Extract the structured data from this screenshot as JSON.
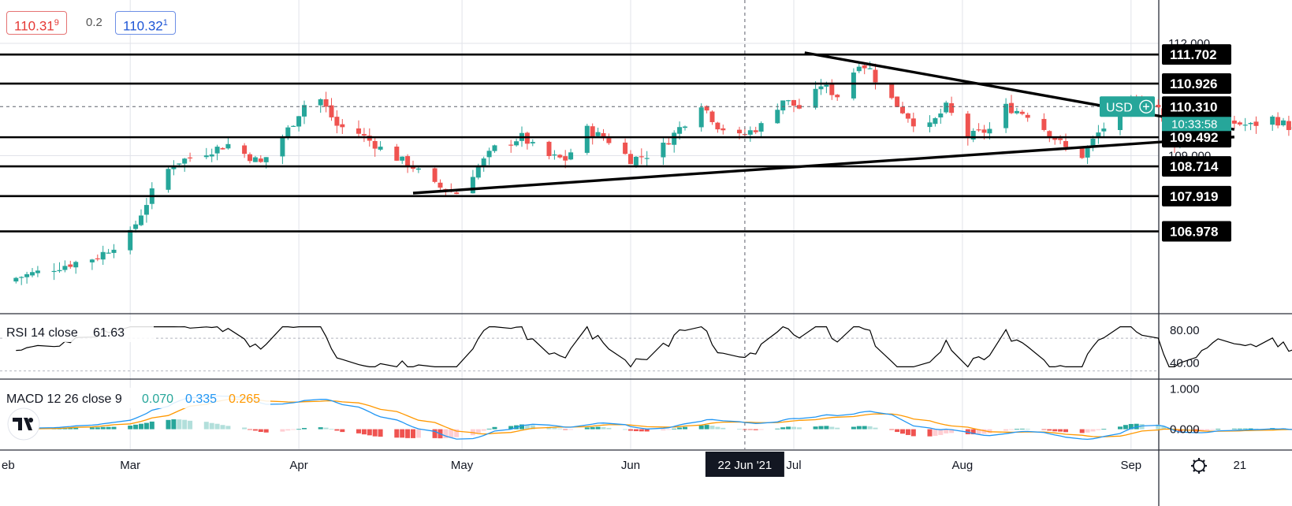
{
  "header": {
    "bid_main": "110.31",
    "bid_sup": "9",
    "spread": "0.2",
    "ask_main": "110.32",
    "ask_sup": "1"
  },
  "colors": {
    "up": "#26a69a",
    "down": "#ef5350",
    "level_line": "#000000",
    "rsi_line": "#000000",
    "macd_line": "#2196f3",
    "signal_line": "#ff9800",
    "hist_up_strong": "#26a69a",
    "hist_up_weak": "#b2dfdb",
    "hist_down_strong": "#ef5350",
    "hist_down_weak": "#ffcdd2",
    "price_tag": "#26a69a"
  },
  "price_tag": {
    "symbol": "USD",
    "price": "110.310",
    "countdown": "10:33:58"
  },
  "rsi_label": {
    "name": "RSI 14 close",
    "value": "61.63"
  },
  "macd_label": {
    "name": "MACD 12 26 close 9",
    "macd": "0.070",
    "signal": "0.335",
    "hist": "0.265"
  },
  "crosshair_date": "22 Jun '21",
  "chart_data": {
    "type": "candlestick",
    "symbol": "USD",
    "x_ticks": [
      "eb",
      "Mar",
      "Apr",
      "May",
      "Jun",
      "22 Jun '21",
      "Jul",
      "Aug",
      "Sep",
      "21"
    ],
    "y_ticks_main": [
      "112.000",
      "109.000"
    ],
    "y_ticks_rsi": [
      "80.00",
      "40.00"
    ],
    "y_ticks_macd": [
      "1.000",
      "0.000"
    ],
    "horizontal_levels": [
      111.702,
      110.926,
      109.492,
      108.714,
      107.919,
      106.978
    ],
    "level_labels": [
      "111.702",
      "110.926",
      "109.492",
      "108.714",
      "107.919",
      "106.978"
    ],
    "trendlines": [
      {
        "from": [
          "2021-07-03",
          111.75
        ],
        "to": [
          "2021-09-20",
          109.7
        ]
      },
      {
        "from": [
          "2021-04-22",
          108.0
        ],
        "to": [
          "2021-09-20",
          109.5
        ]
      }
    ],
    "last_price": 110.31,
    "ohlc_daily_approx": [
      [
        "Feb",
        106.0,
        106.5,
        105.6,
        106.3
      ],
      [
        "Mar",
        106.8,
        108.9,
        106.6,
        108.7
      ],
      [
        "Mar",
        108.7,
        109.4,
        108.4,
        108.9
      ],
      [
        "Apr",
        109.8,
        110.9,
        109.6,
        110.6
      ],
      [
        "Apr",
        110.6,
        110.7,
        109.2,
        109.4
      ],
      [
        "Apr",
        109.4,
        109.5,
        107.9,
        108.2
      ],
      [
        "May",
        108.2,
        109.3,
        108.1,
        109.1
      ],
      [
        "May",
        109.1,
        109.4,
        108.5,
        108.8
      ],
      [
        "Jun",
        108.8,
        110.4,
        108.7,
        110.1
      ],
      [
        "Jun",
        110.1,
        110.3,
        109.4,
        109.7
      ],
      [
        "Jun",
        109.7,
        110.9,
        109.6,
        110.7
      ],
      [
        "Jul",
        110.7,
        111.7,
        110.5,
        111.5
      ],
      [
        "Jul",
        111.5,
        111.6,
        110.2,
        110.4
      ],
      [
        "Jul",
        110.4,
        110.6,
        109.1,
        109.6
      ],
      [
        "Aug",
        109.6,
        110.0,
        108.8,
        109.2
      ],
      [
        "Aug",
        109.2,
        110.7,
        109.1,
        110.5
      ],
      [
        "Aug",
        110.5,
        110.6,
        109.4,
        109.6
      ],
      [
        "Sep",
        109.6,
        110.4,
        109.5,
        110.31
      ]
    ],
    "rsi_range": [
      20,
      100
    ],
    "macd_range": [
      -0.5,
      1.25
    ]
  }
}
